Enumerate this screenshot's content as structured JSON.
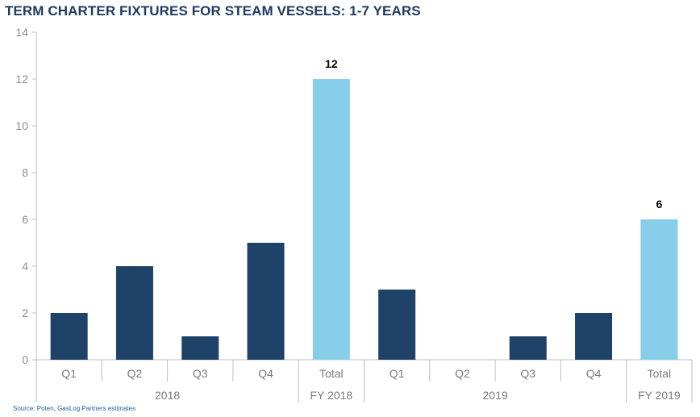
{
  "chart_data": {
    "type": "bar",
    "title": "TERM CHARTER FIXTURES FOR STEAM VESSELS: 1-7 YEARS",
    "xlabel": "",
    "ylabel": "",
    "ylim": [
      0,
      14
    ],
    "yticks": [
      0,
      2,
      4,
      6,
      8,
      10,
      12,
      14
    ],
    "grid": false,
    "legend": "none",
    "categories": [
      "Q1",
      "Q2",
      "Q3",
      "Q4",
      "Total",
      "Q1",
      "Q2",
      "Q3",
      "Q4",
      "Total"
    ],
    "groups": [
      "2018",
      "FY 2018",
      "2019",
      "FY 2019"
    ],
    "group_spans": [
      [
        0,
        3
      ],
      [
        4,
        4
      ],
      [
        5,
        8
      ],
      [
        9,
        9
      ]
    ],
    "values": [
      2,
      4,
      1,
      5,
      12,
      3,
      0,
      1,
      2,
      6
    ],
    "bar_kind": [
      "quarter",
      "quarter",
      "quarter",
      "quarter",
      "total",
      "quarter",
      "quarter",
      "quarter",
      "quarter",
      "total"
    ],
    "data_labels": [
      "",
      "",
      "",
      "",
      "12",
      "",
      "",
      "",
      "",
      "6"
    ],
    "colors": {
      "quarter": "#1f4268",
      "total": "#87ceea",
      "axis": "#bfbfbf"
    },
    "source": "Source: Poten, GasLog Partners estimates"
  }
}
